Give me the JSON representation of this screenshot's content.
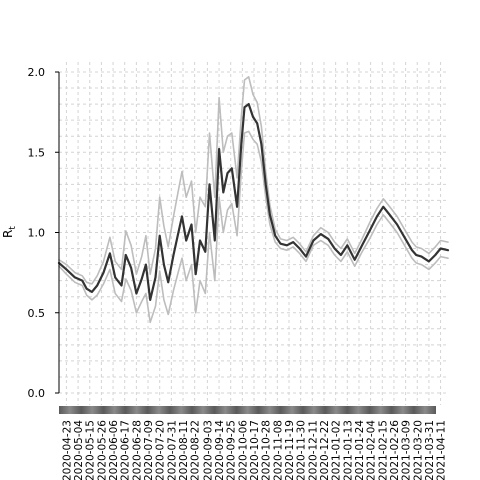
{
  "chart_data": {
    "type": "line",
    "ylabel": "R",
    "ylabel_subscript": "t",
    "ylim": [
      0.0,
      2.0
    ],
    "yticks": [
      "0.0",
      "0.5",
      "1.0",
      "1.5",
      "2.0"
    ],
    "xlim": [
      "2020-04-16",
      "2021-04-18"
    ],
    "grid": true,
    "xtick_labels": [
      "2020-04-23",
      "2020-05-04",
      "2020-05-15",
      "2020-05-26",
      "2020-06-06",
      "2020-06-17",
      "2020-06-28",
      "2020-07-09",
      "2020-07-20",
      "2020-07-31",
      "2020-08-11",
      "2020-08-22",
      "2020-09-03",
      "2020-09-14",
      "2020-09-25",
      "2020-10-06",
      "2020-10-17",
      "2020-10-28",
      "2020-11-08",
      "2020-11-19",
      "2020-11-30",
      "2020-12-11",
      "2020-12-22",
      "2021-01-02",
      "2021-01-13",
      "2021-01-24",
      "2021-02-04",
      "2021-02-15",
      "2021-02-26",
      "2021-03-09",
      "2021-03-20",
      "2021-03-31",
      "2021-04-11"
    ],
    "series": [
      {
        "role": "estimate",
        "color": "#333333",
        "x": [
          "2020-04-16",
          "2020-04-23",
          "2020-05-01",
          "2020-05-08",
          "2020-05-12",
          "2020-05-17",
          "2020-05-22",
          "2020-05-28",
          "2020-06-03",
          "2020-06-08",
          "2020-06-14",
          "2020-06-18",
          "2020-06-23",
          "2020-06-28",
          "2020-07-03",
          "2020-07-07",
          "2020-07-11",
          "2020-07-16",
          "2020-07-20",
          "2020-07-24",
          "2020-07-28",
          "2020-08-02",
          "2020-08-06",
          "2020-08-10",
          "2020-08-14",
          "2020-08-19",
          "2020-08-23",
          "2020-08-27",
          "2020-09-01",
          "2020-09-05",
          "2020-09-10",
          "2020-09-14",
          "2020-09-18",
          "2020-09-22",
          "2020-09-26",
          "2020-10-01",
          "2020-10-05",
          "2020-10-08",
          "2020-10-12",
          "2020-10-16",
          "2020-10-20",
          "2020-10-24",
          "2020-10-28",
          "2020-11-01",
          "2020-11-06",
          "2020-11-11",
          "2020-11-17",
          "2020-11-23",
          "2020-11-29",
          "2020-12-05",
          "2020-12-12",
          "2020-12-19",
          "2020-12-26",
          "2021-01-01",
          "2021-01-07",
          "2021-01-13",
          "2021-01-20",
          "2021-01-27",
          "2021-02-03",
          "2021-02-10",
          "2021-02-16",
          "2021-02-22",
          "2021-03-01",
          "2021-03-08",
          "2021-03-15",
          "2021-03-19",
          "2021-03-24",
          "2021-03-31",
          "2021-04-06",
          "2021-04-11",
          "2021-04-18"
        ],
        "y": [
          0.81,
          0.77,
          0.72,
          0.7,
          0.65,
          0.63,
          0.67,
          0.75,
          0.87,
          0.72,
          0.67,
          0.86,
          0.78,
          0.62,
          0.71,
          0.8,
          0.58,
          0.72,
          0.98,
          0.8,
          0.69,
          0.86,
          0.98,
          1.1,
          0.95,
          1.05,
          0.74,
          0.95,
          0.88,
          1.3,
          0.95,
          1.52,
          1.25,
          1.37,
          1.4,
          1.16,
          1.55,
          1.78,
          1.8,
          1.72,
          1.68,
          1.55,
          1.3,
          1.11,
          0.98,
          0.93,
          0.92,
          0.94,
          0.9,
          0.85,
          0.95,
          0.99,
          0.96,
          0.9,
          0.86,
          0.92,
          0.83,
          0.92,
          1.01,
          1.1,
          1.16,
          1.11,
          1.05,
          0.97,
          0.89,
          0.86,
          0.85,
          0.82,
          0.86,
          0.9,
          0.89
        ]
      },
      {
        "role": "upper",
        "color": "#bdbdbd",
        "x": [
          "2020-04-16",
          "2020-04-23",
          "2020-05-01",
          "2020-05-08",
          "2020-05-12",
          "2020-05-17",
          "2020-05-22",
          "2020-05-28",
          "2020-06-03",
          "2020-06-08",
          "2020-06-14",
          "2020-06-18",
          "2020-06-23",
          "2020-06-28",
          "2020-07-03",
          "2020-07-07",
          "2020-07-11",
          "2020-07-16",
          "2020-07-20",
          "2020-07-24",
          "2020-07-28",
          "2020-08-02",
          "2020-08-06",
          "2020-08-10",
          "2020-08-14",
          "2020-08-19",
          "2020-08-23",
          "2020-08-27",
          "2020-09-01",
          "2020-09-05",
          "2020-09-10",
          "2020-09-14",
          "2020-09-18",
          "2020-09-22",
          "2020-09-26",
          "2020-10-01",
          "2020-10-05",
          "2020-10-08",
          "2020-10-12",
          "2020-10-16",
          "2020-10-20",
          "2020-10-24",
          "2020-10-28",
          "2020-11-01",
          "2020-11-06",
          "2020-11-11",
          "2020-11-17",
          "2020-11-23",
          "2020-11-29",
          "2020-12-05",
          "2020-12-12",
          "2020-12-19",
          "2020-12-26",
          "2021-01-01",
          "2021-01-07",
          "2021-01-13",
          "2021-01-20",
          "2021-01-27",
          "2021-02-03",
          "2021-02-10",
          "2021-02-16",
          "2021-02-22",
          "2021-03-01",
          "2021-03-08",
          "2021-03-15",
          "2021-03-19",
          "2021-03-24",
          "2021-03-31",
          "2021-04-06",
          "2021-04-11",
          "2021-04-18"
        ],
        "y": [
          0.83,
          0.8,
          0.75,
          0.73,
          0.69,
          0.68,
          0.73,
          0.82,
          0.97,
          0.82,
          0.77,
          1.01,
          0.92,
          0.74,
          0.85,
          0.98,
          0.74,
          0.9,
          1.22,
          1.04,
          0.91,
          1.1,
          1.24,
          1.38,
          1.22,
          1.32,
          1.0,
          1.22,
          1.16,
          1.62,
          1.22,
          1.84,
          1.5,
          1.6,
          1.62,
          1.34,
          1.72,
          1.95,
          1.97,
          1.86,
          1.81,
          1.66,
          1.38,
          1.17,
          1.02,
          0.96,
          0.95,
          0.97,
          0.93,
          0.88,
          0.98,
          1.03,
          1.0,
          0.94,
          0.9,
          0.96,
          0.87,
          0.96,
          1.06,
          1.15,
          1.21,
          1.16,
          1.1,
          1.02,
          0.94,
          0.91,
          0.9,
          0.87,
          0.91,
          0.95,
          0.94
        ]
      },
      {
        "role": "lower",
        "color": "#bdbdbd",
        "x": [
          "2020-04-16",
          "2020-04-23",
          "2020-05-01",
          "2020-05-08",
          "2020-05-12",
          "2020-05-17",
          "2020-05-22",
          "2020-05-28",
          "2020-06-03",
          "2020-06-08",
          "2020-06-14",
          "2020-06-18",
          "2020-06-23",
          "2020-06-28",
          "2020-07-03",
          "2020-07-07",
          "2020-07-11",
          "2020-07-16",
          "2020-07-20",
          "2020-07-24",
          "2020-07-28",
          "2020-08-02",
          "2020-08-06",
          "2020-08-10",
          "2020-08-14",
          "2020-08-19",
          "2020-08-23",
          "2020-08-27",
          "2020-09-01",
          "2020-09-05",
          "2020-09-10",
          "2020-09-14",
          "2020-09-18",
          "2020-09-22",
          "2020-09-26",
          "2020-10-01",
          "2020-10-05",
          "2020-10-08",
          "2020-10-12",
          "2020-10-16",
          "2020-10-20",
          "2020-10-24",
          "2020-10-28",
          "2020-11-01",
          "2020-11-06",
          "2020-11-11",
          "2020-11-17",
          "2020-11-23",
          "2020-11-29",
          "2020-12-05",
          "2020-12-12",
          "2020-12-19",
          "2020-12-26",
          "2021-01-01",
          "2021-01-07",
          "2021-01-13",
          "2021-01-20",
          "2021-01-27",
          "2021-02-03",
          "2021-02-10",
          "2021-02-16",
          "2021-02-22",
          "2021-03-01",
          "2021-03-08",
          "2021-03-15",
          "2021-03-19",
          "2021-03-24",
          "2021-03-31",
          "2021-04-06",
          "2021-04-11",
          "2021-04-18"
        ],
        "y": [
          0.79,
          0.74,
          0.69,
          0.67,
          0.61,
          0.58,
          0.61,
          0.68,
          0.77,
          0.62,
          0.57,
          0.71,
          0.64,
          0.5,
          0.57,
          0.62,
          0.44,
          0.54,
          0.76,
          0.58,
          0.49,
          0.64,
          0.74,
          0.84,
          0.7,
          0.8,
          0.5,
          0.7,
          0.62,
          1.0,
          0.7,
          1.22,
          1.0,
          1.14,
          1.18,
          0.98,
          1.38,
          1.62,
          1.63,
          1.58,
          1.55,
          1.44,
          1.22,
          1.05,
          0.94,
          0.9,
          0.89,
          0.91,
          0.87,
          0.82,
          0.92,
          0.95,
          0.92,
          0.86,
          0.82,
          0.88,
          0.79,
          0.88,
          0.96,
          1.05,
          1.11,
          1.06,
          1.0,
          0.92,
          0.84,
          0.81,
          0.8,
          0.77,
          0.81,
          0.85,
          0.84
        ]
      }
    ]
  }
}
